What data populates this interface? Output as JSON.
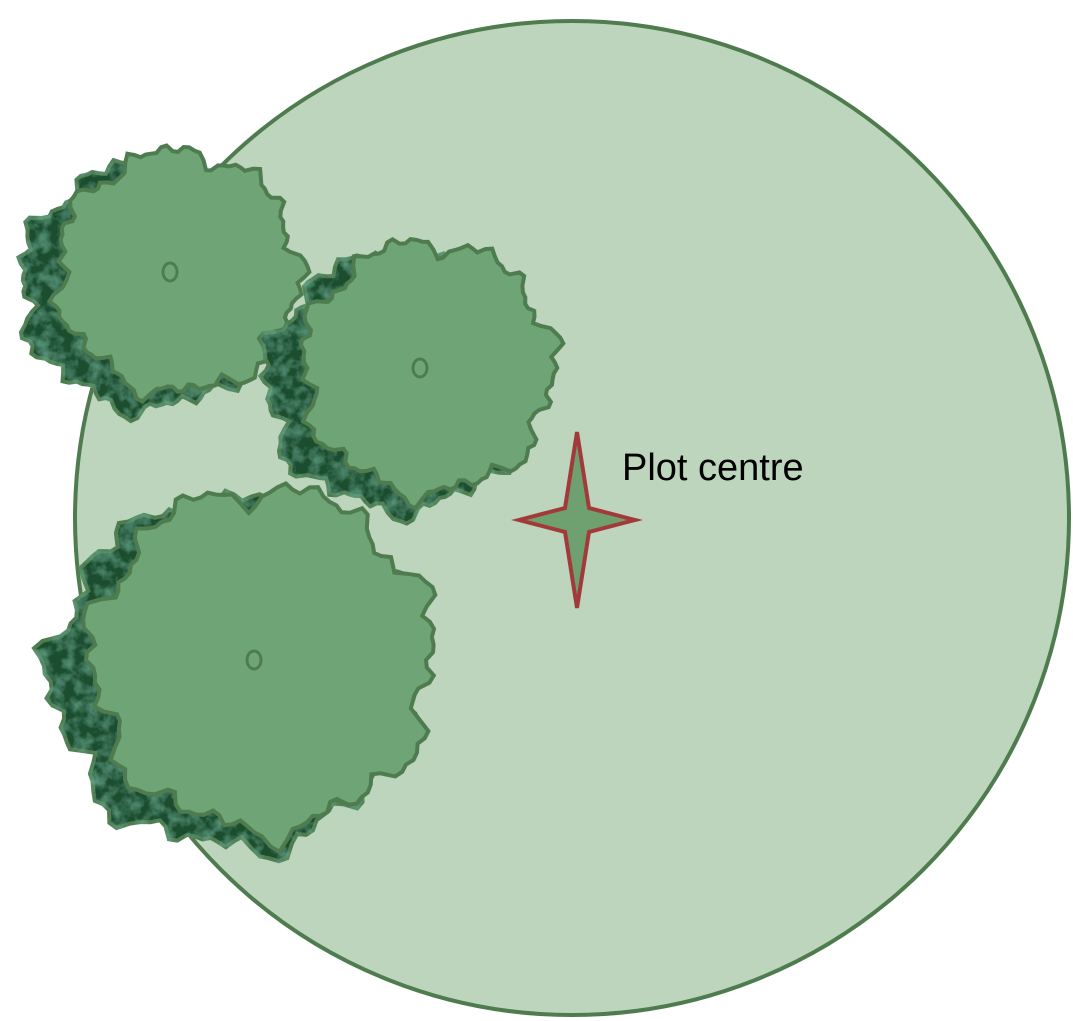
{
  "annotation": {
    "label": "Plot centre"
  }
}
